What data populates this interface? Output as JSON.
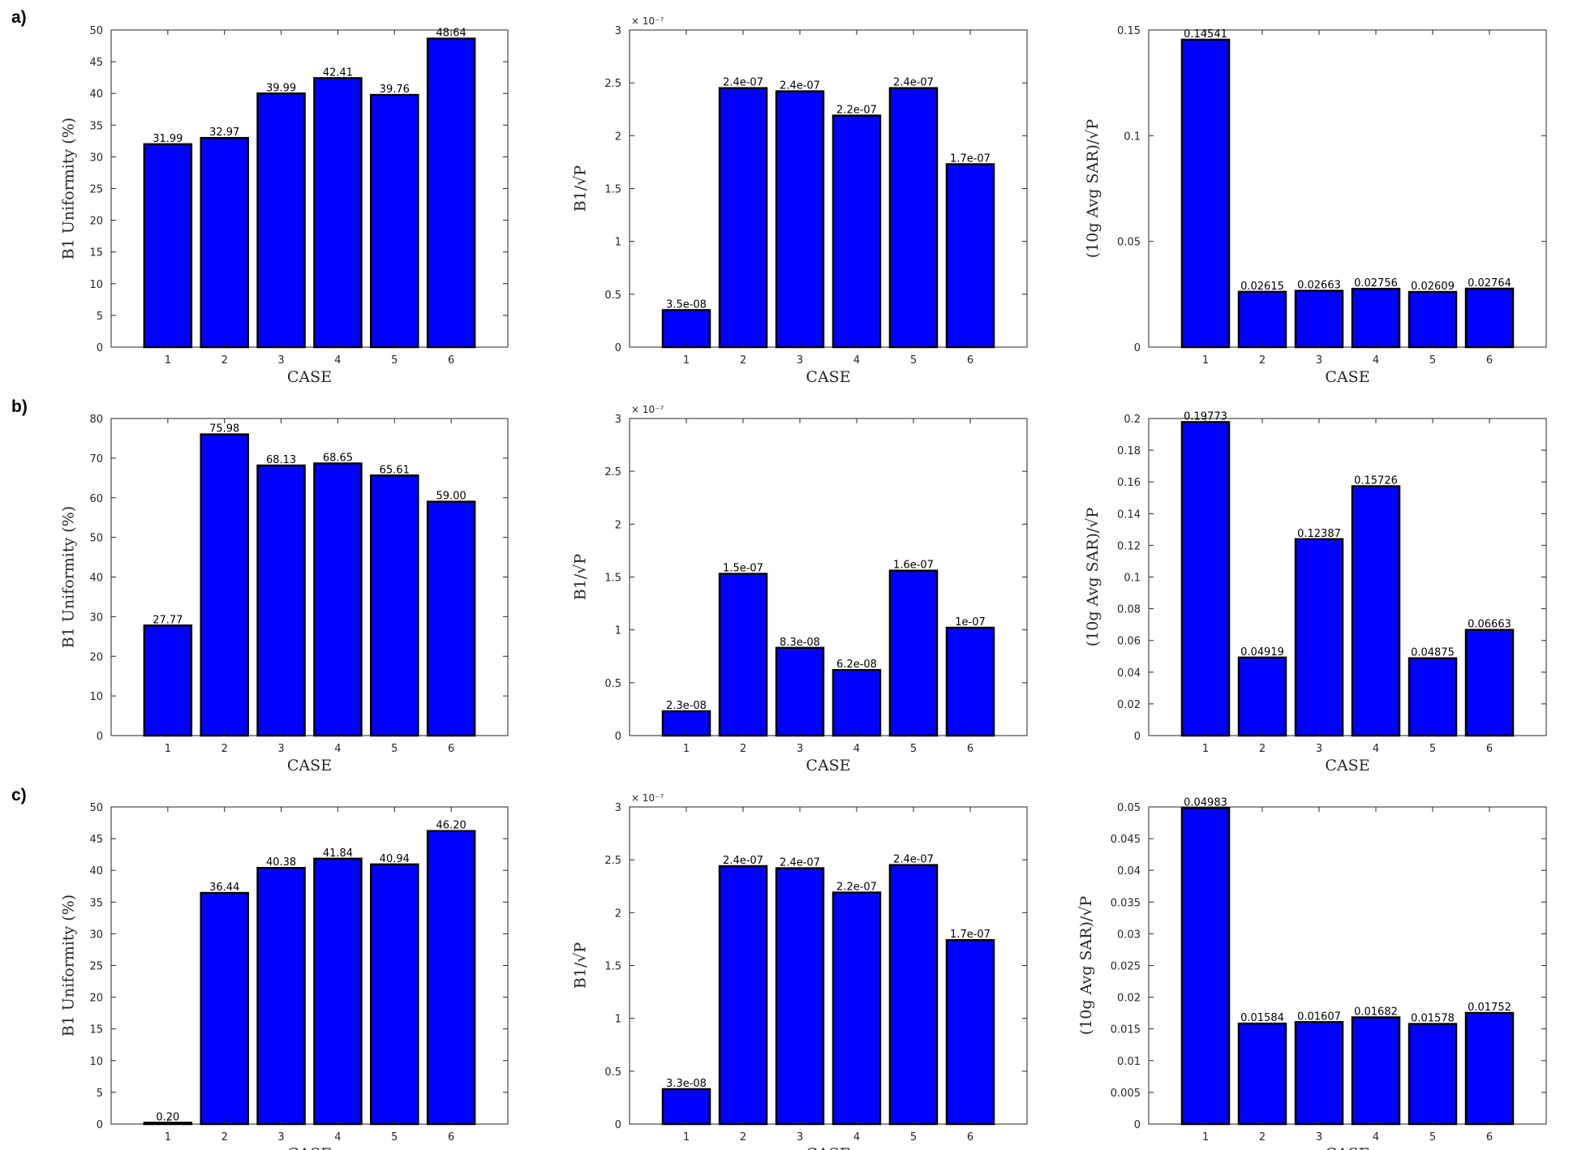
{
  "panel_labels": [
    "a)",
    "b)",
    "c)"
  ],
  "colors": {
    "bar_fill": "#0000ff",
    "bar_edge": "#000000",
    "axis": "#262626"
  },
  "chart_data": [
    {
      "type": "bar",
      "panel": "a)",
      "categories": [
        "1",
        "2",
        "3",
        "4",
        "5",
        "6"
      ],
      "values": [
        31.99,
        32.97,
        39.99,
        42.41,
        39.76,
        48.64
      ],
      "data_labels": [
        "31.99",
        "32.97",
        "39.99",
        "42.41",
        "39.76",
        "48.64"
      ],
      "xlabel": "CASE",
      "ylabel": "B1 Uniformity (%)",
      "ylim": [
        0,
        50
      ],
      "yticks": [
        0,
        5,
        10,
        15,
        20,
        25,
        30,
        35,
        40,
        45,
        50
      ],
      "ytick_labels": [
        "0",
        "5",
        "10",
        "15",
        "20",
        "25",
        "30",
        "35",
        "40",
        "45",
        "50"
      ],
      "exponent_label": ""
    },
    {
      "type": "bar",
      "panel": "a)",
      "categories": [
        "1",
        "2",
        "3",
        "4",
        "5",
        "6"
      ],
      "values": [
        3.5e-08,
        2.45e-07,
        2.42e-07,
        2.19e-07,
        2.45e-07,
        1.73e-07
      ],
      "data_labels": [
        "3.5e-08",
        "2.4e-07",
        "2.4e-07",
        "2.2e-07",
        "2.4e-07",
        "1.7e-07"
      ],
      "xlabel": "CASE",
      "ylabel": "B1/√P",
      "ylim": [
        0,
        3e-07
      ],
      "yticks": [
        0,
        5e-08,
        1e-07,
        1.5e-07,
        2e-07,
        2.5e-07,
        3e-07
      ],
      "ytick_labels": [
        "0",
        "0.5",
        "1",
        "1.5",
        "2",
        "2.5",
        "3"
      ],
      "exponent_label": "× 10⁻⁷"
    },
    {
      "type": "bar",
      "panel": "a)",
      "categories": [
        "1",
        "2",
        "3",
        "4",
        "5",
        "6"
      ],
      "values": [
        0.14541,
        0.02615,
        0.02663,
        0.02756,
        0.02609,
        0.02764
      ],
      "data_labels": [
        "0.14541",
        "0.02615",
        "0.02663",
        "0.02756",
        "0.02609",
        "0.02764"
      ],
      "xlabel": "CASE",
      "ylabel": "(10g Avg SAR)/√P",
      "ylim": [
        0,
        0.15
      ],
      "yticks": [
        0,
        0.05,
        0.1,
        0.15
      ],
      "ytick_labels": [
        "0",
        "0.05",
        "0.1",
        "0.15"
      ],
      "exponent_label": ""
    },
    {
      "type": "bar",
      "panel": "b)",
      "categories": [
        "1",
        "2",
        "3",
        "4",
        "5",
        "6"
      ],
      "values": [
        27.77,
        75.98,
        68.13,
        68.65,
        65.61,
        59.0
      ],
      "data_labels": [
        "27.77",
        "75.98",
        "68.13",
        "68.65",
        "65.61",
        "59.00"
      ],
      "xlabel": "CASE",
      "ylabel": "B1 Uniformity (%)",
      "ylim": [
        0,
        80
      ],
      "yticks": [
        0,
        10,
        20,
        30,
        40,
        50,
        60,
        70,
        80
      ],
      "ytick_labels": [
        "0",
        "10",
        "20",
        "30",
        "40",
        "50",
        "60",
        "70",
        "80"
      ],
      "exponent_label": ""
    },
    {
      "type": "bar",
      "panel": "b)",
      "categories": [
        "1",
        "2",
        "3",
        "4",
        "5",
        "6"
      ],
      "values": [
        2.3e-08,
        1.53e-07,
        8.3e-08,
        6.2e-08,
        1.56e-07,
        1.02e-07
      ],
      "data_labels": [
        "2.3e-08",
        "1.5e-07",
        "8.3e-08",
        "6.2e-08",
        "1.6e-07",
        "1e-07"
      ],
      "xlabel": "CASE",
      "ylabel": "B1/√P",
      "ylim": [
        0,
        3e-07
      ],
      "yticks": [
        0,
        5e-08,
        1e-07,
        1.5e-07,
        2e-07,
        2.5e-07,
        3e-07
      ],
      "ytick_labels": [
        "0",
        "0.5",
        "1",
        "1.5",
        "2",
        "2.5",
        "3"
      ],
      "exponent_label": "× 10⁻⁷"
    },
    {
      "type": "bar",
      "panel": "b)",
      "categories": [
        "1",
        "2",
        "3",
        "4",
        "5",
        "6"
      ],
      "values": [
        0.19773,
        0.04919,
        0.12387,
        0.15726,
        0.04875,
        0.06663
      ],
      "data_labels": [
        "0.19773",
        "0.04919",
        "0.12387",
        "0.15726",
        "0.04875",
        "0.06663"
      ],
      "xlabel": "CASE",
      "ylabel": "(10g Avg SAR)/√P",
      "ylim": [
        0,
        0.2
      ],
      "yticks": [
        0,
        0.02,
        0.04,
        0.06,
        0.08,
        0.1,
        0.12,
        0.14,
        0.16,
        0.18,
        0.2
      ],
      "ytick_labels": [
        "0",
        "0.02",
        "0.04",
        "0.06",
        "0.08",
        "0.1",
        "0.12",
        "0.14",
        "0.16",
        "0.18",
        "0.2"
      ],
      "exponent_label": ""
    },
    {
      "type": "bar",
      "panel": "c)",
      "categories": [
        "1",
        "2",
        "3",
        "4",
        "5",
        "6"
      ],
      "values": [
        0.2,
        36.44,
        40.38,
        41.84,
        40.94,
        46.2
      ],
      "data_labels": [
        "0.20",
        "36.44",
        "40.38",
        "41.84",
        "40.94",
        "46.20"
      ],
      "xlabel": "CASE",
      "ylabel": "B1 Uniformity (%)",
      "ylim": [
        0,
        50
      ],
      "yticks": [
        0,
        5,
        10,
        15,
        20,
        25,
        30,
        35,
        40,
        45,
        50
      ],
      "ytick_labels": [
        "0",
        "5",
        "10",
        "15",
        "20",
        "25",
        "30",
        "35",
        "40",
        "45",
        "50"
      ],
      "exponent_label": ""
    },
    {
      "type": "bar",
      "panel": "c)",
      "categories": [
        "1",
        "2",
        "3",
        "4",
        "5",
        "6"
      ],
      "values": [
        3.3e-08,
        2.44e-07,
        2.42e-07,
        2.19e-07,
        2.45e-07,
        1.74e-07
      ],
      "data_labels": [
        "3.3e-08",
        "2.4e-07",
        "2.4e-07",
        "2.2e-07",
        "2.4e-07",
        "1.7e-07"
      ],
      "xlabel": "CASE",
      "ylabel": "B1/√P",
      "ylim": [
        0,
        3e-07
      ],
      "yticks": [
        0,
        5e-08,
        1e-07,
        1.5e-07,
        2e-07,
        2.5e-07,
        3e-07
      ],
      "ytick_labels": [
        "0",
        "0.5",
        "1",
        "1.5",
        "2",
        "2.5",
        "3"
      ],
      "exponent_label": "× 10⁻⁷"
    },
    {
      "type": "bar",
      "panel": "c)",
      "categories": [
        "1",
        "2",
        "3",
        "4",
        "5",
        "6"
      ],
      "values": [
        0.04983,
        0.01584,
        0.01607,
        0.01682,
        0.01578,
        0.01752
      ],
      "data_labels": [
        "0.04983",
        "0.01584",
        "0.01607",
        "0.01682",
        "0.01578",
        "0.01752"
      ],
      "xlabel": "CASE",
      "ylabel": "(10g Avg SAR)/√P",
      "ylim": [
        0,
        0.05
      ],
      "yticks": [
        0,
        0.005,
        0.01,
        0.015,
        0.02,
        0.025,
        0.03,
        0.035,
        0.04,
        0.045,
        0.05
      ],
      "ytick_labels": [
        "0",
        "0.005",
        "0.01",
        "0.015",
        "0.02",
        "0.025",
        "0.03",
        "0.035",
        "0.04",
        "0.045",
        "0.05"
      ],
      "exponent_label": ""
    }
  ]
}
